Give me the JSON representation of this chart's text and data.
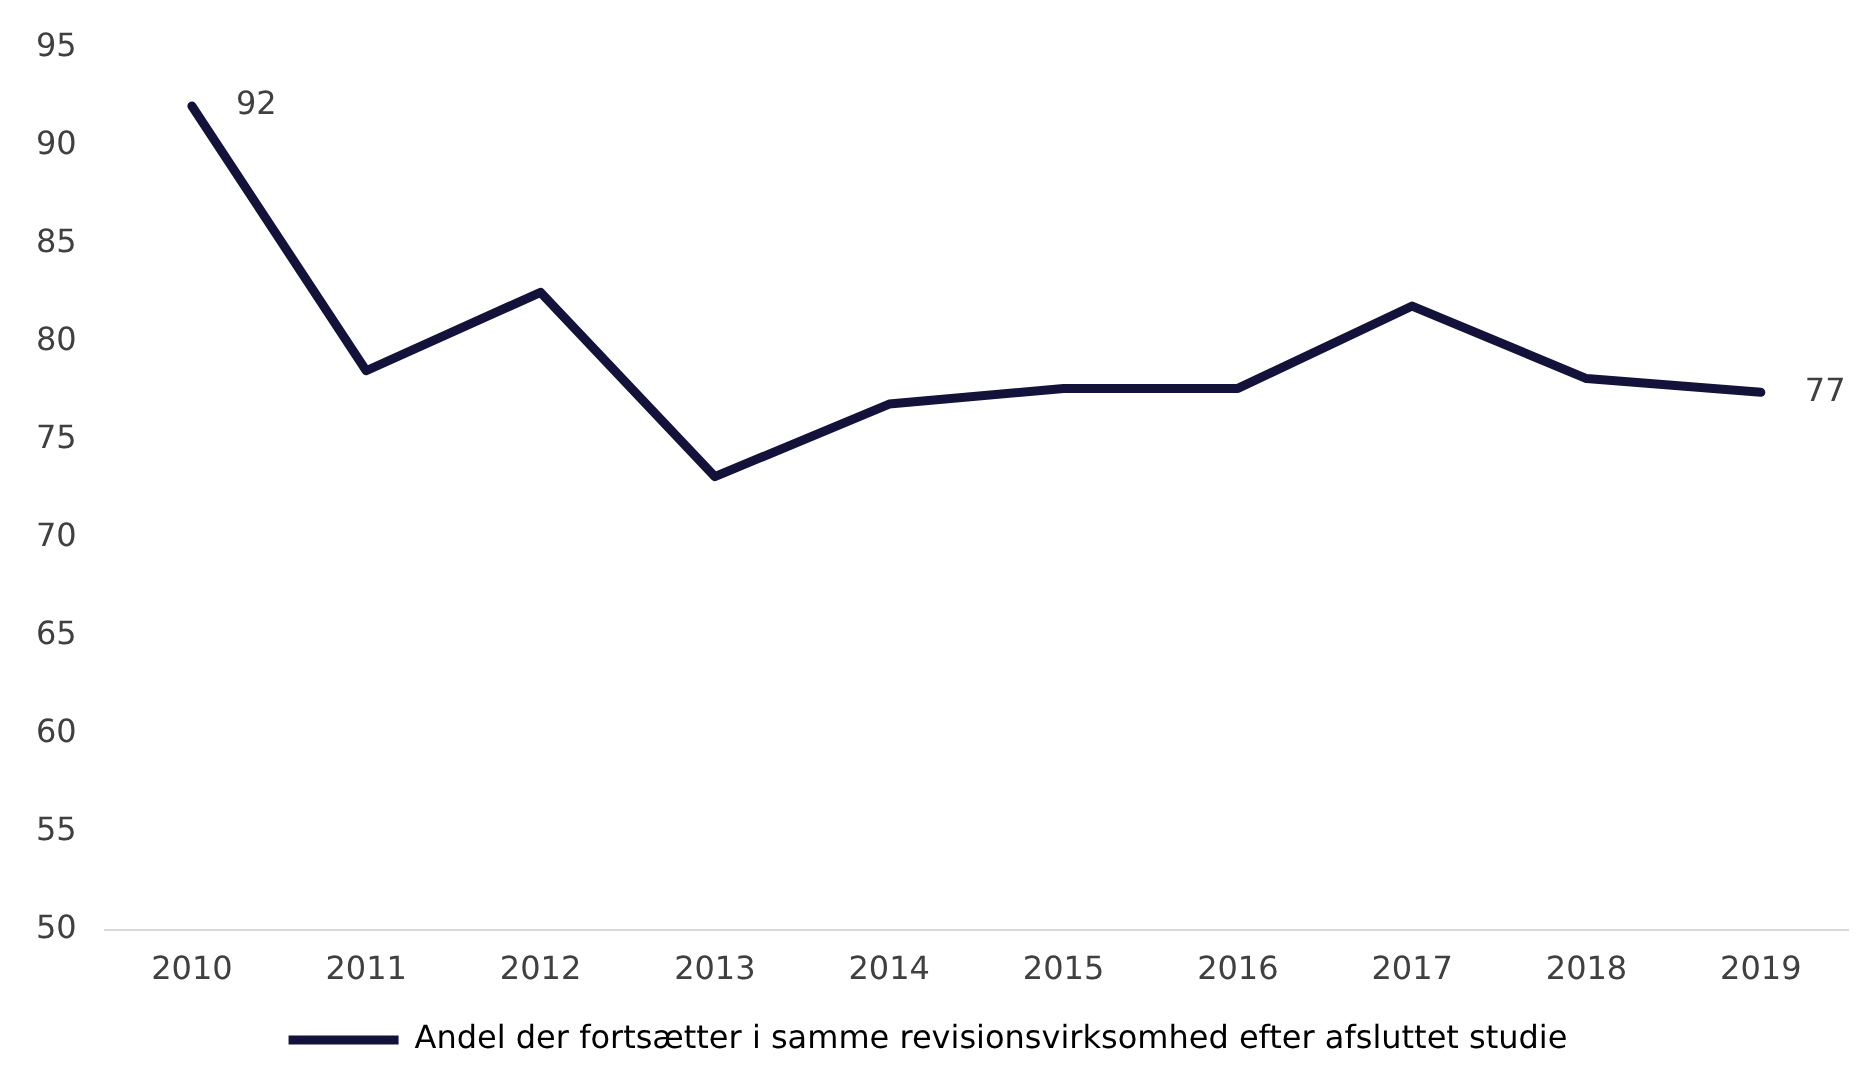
{
  "chart_data": {
    "type": "line",
    "categories": [
      "2010",
      "2011",
      "2012",
      "2013",
      "2014",
      "2015",
      "2016",
      "2017",
      "2018",
      "2019"
    ],
    "series": [
      {
        "name": "Andel der fortsætter i samme revisionsvirksomhed efter afsluttet studie",
        "color": "#12123a",
        "values": [
          92,
          78.5,
          82.5,
          73.1,
          76.8,
          77.6,
          77.6,
          81.8,
          78.1,
          77.4
        ],
        "value_labels": [
          "92",
          null,
          null,
          null,
          null,
          null,
          null,
          null,
          null,
          "77"
        ]
      }
    ],
    "ylim": [
      50,
      95
    ],
    "yticks": [
      50,
      55,
      60,
      65,
      70,
      75,
      80,
      85,
      90,
      95
    ],
    "grid": false,
    "legend": "bottom",
    "marker": "none",
    "line_style": "solid"
  }
}
